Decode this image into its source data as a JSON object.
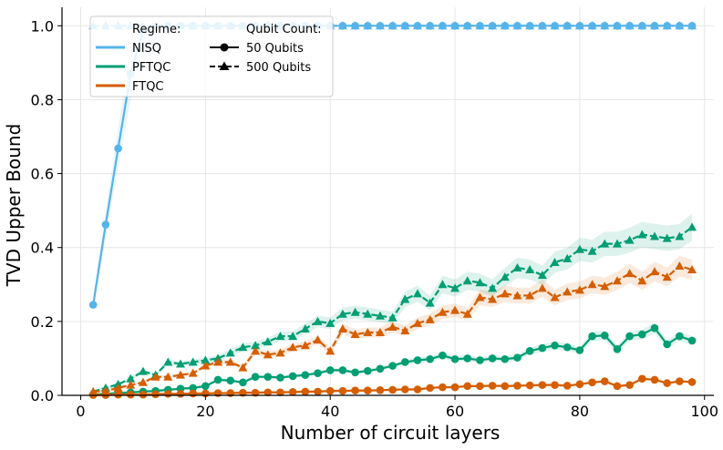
{
  "chart_data": {
    "type": "line",
    "xlabel": "Number of circuit layers",
    "ylabel": "TVD Upper Bound",
    "xlim": [
      -3,
      101.5
    ],
    "ylim": [
      0,
      1.05
    ],
    "xticks": [
      0,
      20,
      40,
      60,
      80,
      100
    ],
    "yticks": [
      0.0,
      0.2,
      0.4,
      0.6,
      0.8,
      1.0
    ],
    "grid": true,
    "legend": {
      "placement": "top-left",
      "regime_title": "Regime:",
      "qubit_title": "Qubit Count:",
      "regimes": [
        {
          "name": "NISQ",
          "color": "#56B4E9"
        },
        {
          "name": "PFTQC",
          "color": "#009E73"
        },
        {
          "name": "FTQC",
          "color": "#D55E00"
        }
      ],
      "qubit_counts": [
        {
          "name": "50 Qubits",
          "marker": "circle",
          "dash": "solid"
        },
        {
          "name": "500 Qubits",
          "marker": "triangle",
          "dash": "dashed"
        }
      ]
    },
    "x": [
      2,
      4,
      6,
      8,
      10,
      12,
      14,
      16,
      18,
      20,
      22,
      24,
      26,
      28,
      30,
      32,
      34,
      36,
      38,
      40,
      42,
      44,
      46,
      48,
      50,
      52,
      54,
      56,
      58,
      60,
      62,
      64,
      66,
      68,
      70,
      72,
      74,
      76,
      78,
      80,
      82,
      84,
      86,
      88,
      90,
      92,
      94,
      96,
      98
    ],
    "series": [
      {
        "name": "NISQ 50 Qubits",
        "regime": "NISQ",
        "qubits": 50,
        "color": "#56B4E9",
        "marker": "circle",
        "dash": "solid",
        "values": [
          0.245,
          0.462,
          0.668,
          0.87,
          0.985,
          0.998,
          1.0,
          1.0,
          1.0,
          1.0,
          1.0,
          1.0,
          1.0,
          1.0,
          1.0,
          1.0,
          1.0,
          1.0,
          1.0,
          1.0,
          1.0,
          1.0,
          1.0,
          1.0,
          1.0,
          1.0,
          1.0,
          1.0,
          1.0,
          1.0,
          1.0,
          1.0,
          1.0,
          1.0,
          1.0,
          1.0,
          1.0,
          1.0,
          1.0,
          1.0,
          1.0,
          1.0,
          1.0,
          1.0,
          1.0,
          1.0,
          1.0,
          1.0,
          1.0
        ]
      },
      {
        "name": "NISQ 500 Qubits",
        "regime": "NISQ",
        "qubits": 500,
        "color": "#56B4E9",
        "marker": "triangle",
        "dash": "dashed",
        "values": [
          1.0,
          1.0,
          1.0,
          1.0,
          1.0,
          1.0,
          1.0,
          1.0,
          1.0,
          1.0,
          1.0,
          1.0,
          1.0,
          1.0,
          1.0,
          1.0,
          1.0,
          1.0,
          1.0,
          1.0,
          1.0,
          1.0,
          1.0,
          1.0,
          1.0,
          1.0,
          1.0,
          1.0,
          1.0,
          1.0,
          1.0,
          1.0,
          1.0,
          1.0,
          1.0,
          1.0,
          1.0,
          1.0,
          1.0,
          1.0,
          1.0,
          1.0,
          1.0,
          1.0,
          1.0,
          1.0,
          1.0,
          1.0,
          1.0
        ]
      },
      {
        "name": "PFTQC 50 Qubits",
        "regime": "PFTQC",
        "qubits": 50,
        "color": "#009E73",
        "marker": "circle",
        "dash": "solid",
        "values": [
          0.002,
          0.004,
          0.006,
          0.008,
          0.01,
          0.012,
          0.015,
          0.018,
          0.02,
          0.025,
          0.042,
          0.04,
          0.035,
          0.05,
          0.05,
          0.048,
          0.052,
          0.055,
          0.06,
          0.068,
          0.068,
          0.062,
          0.066,
          0.072,
          0.08,
          0.09,
          0.095,
          0.098,
          0.108,
          0.098,
          0.1,
          0.095,
          0.1,
          0.098,
          0.102,
          0.12,
          0.128,
          0.135,
          0.13,
          0.122,
          0.16,
          0.162,
          0.125,
          0.16,
          0.165,
          0.182,
          0.138,
          0.16,
          0.148
        ]
      },
      {
        "name": "PFTQC 500 Qubits",
        "regime": "PFTQC",
        "qubits": 500,
        "color": "#009E73",
        "marker": "triangle",
        "dash": "dashed",
        "values": [
          0.01,
          0.02,
          0.03,
          0.045,
          0.065,
          0.055,
          0.09,
          0.085,
          0.09,
          0.095,
          0.1,
          0.115,
          0.13,
          0.135,
          0.145,
          0.16,
          0.16,
          0.18,
          0.2,
          0.195,
          0.22,
          0.225,
          0.22,
          0.215,
          0.21,
          0.26,
          0.275,
          0.25,
          0.3,
          0.29,
          0.31,
          0.305,
          0.29,
          0.32,
          0.345,
          0.34,
          0.325,
          0.36,
          0.37,
          0.395,
          0.39,
          0.41,
          0.41,
          0.42,
          0.435,
          0.43,
          0.425,
          0.43,
          0.455
        ]
      },
      {
        "name": "FTQC 50 Qubits",
        "regime": "FTQC",
        "qubits": 50,
        "color": "#D55E00",
        "marker": "circle",
        "dash": "solid",
        "values": [
          0.001,
          0.001,
          0.002,
          0.002,
          0.002,
          0.003,
          0.004,
          0.004,
          0.005,
          0.005,
          0.006,
          0.006,
          0.007,
          0.007,
          0.008,
          0.008,
          0.009,
          0.01,
          0.01,
          0.012,
          0.012,
          0.013,
          0.013,
          0.014,
          0.015,
          0.016,
          0.016,
          0.02,
          0.022,
          0.022,
          0.025,
          0.025,
          0.026,
          0.025,
          0.026,
          0.027,
          0.028,
          0.028,
          0.026,
          0.03,
          0.035,
          0.038,
          0.025,
          0.028,
          0.045,
          0.042,
          0.033,
          0.038,
          0.036
        ]
      },
      {
        "name": "FTQC 500 Qubits",
        "regime": "FTQC",
        "qubits": 500,
        "color": "#D55E00",
        "marker": "triangle",
        "dash": "dashed",
        "values": [
          0.01,
          0.012,
          0.02,
          0.028,
          0.035,
          0.05,
          0.05,
          0.055,
          0.06,
          0.08,
          0.09,
          0.09,
          0.075,
          0.12,
          0.11,
          0.115,
          0.13,
          0.135,
          0.15,
          0.12,
          0.18,
          0.165,
          0.17,
          0.17,
          0.185,
          0.175,
          0.195,
          0.205,
          0.225,
          0.23,
          0.22,
          0.265,
          0.26,
          0.275,
          0.27,
          0.27,
          0.29,
          0.265,
          0.28,
          0.285,
          0.3,
          0.295,
          0.31,
          0.33,
          0.31,
          0.335,
          0.32,
          0.35,
          0.34
        ]
      }
    ]
  }
}
